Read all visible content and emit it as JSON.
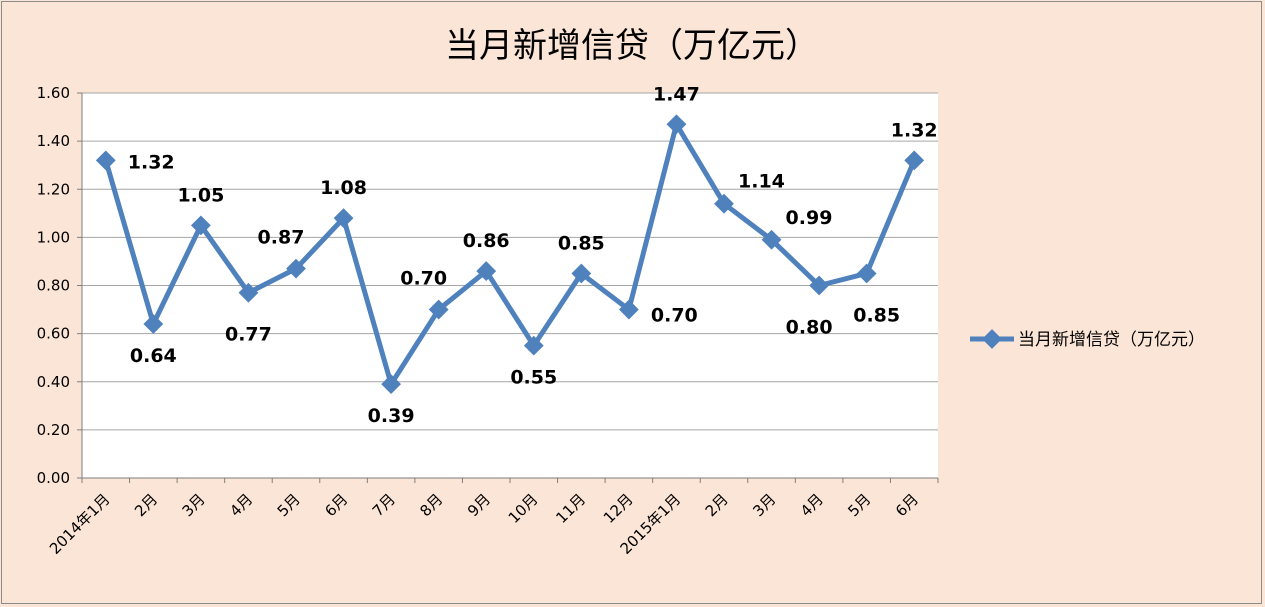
{
  "chart_data": {
    "type": "line",
    "title": "当月新增信贷（万亿元）",
    "categories": [
      "2014年1月",
      "2月",
      "3月",
      "4月",
      "5月",
      "6月",
      "7月",
      "8月",
      "9月",
      "10月",
      "11月",
      "12月",
      "2015年1月",
      "2月",
      "3月",
      "4月",
      "5月",
      "6月"
    ],
    "series": [
      {
        "name": "当月新增信贷（万亿元）",
        "values": [
          1.32,
          0.64,
          1.05,
          0.77,
          0.87,
          1.08,
          0.39,
          0.7,
          0.86,
          0.55,
          0.85,
          0.7,
          1.47,
          1.14,
          0.99,
          0.8,
          0.85,
          1.32
        ],
        "data_labels": [
          "1.32",
          "0.64",
          "1.05",
          "0.77",
          "0.87",
          "1.08",
          "0.39",
          "0.70",
          "0.86",
          "0.55",
          "0.85",
          "0.70",
          "1.47",
          "1.14",
          "0.99",
          "0.80",
          "0.85",
          "1.32"
        ],
        "color": "#4f81bd"
      }
    ],
    "ylim": [
      0,
      1.6
    ],
    "yticks": [
      "0.00",
      "0.20",
      "0.40",
      "0.60",
      "0.80",
      "1.00",
      "1.20",
      "1.40",
      "1.60"
    ],
    "grid": true,
    "legend_position": "right",
    "colors": {
      "background": "#fbe5d6",
      "plot_area": "#ffffff",
      "line": "#4f81bd",
      "grid": "#a6a6a6"
    }
  }
}
